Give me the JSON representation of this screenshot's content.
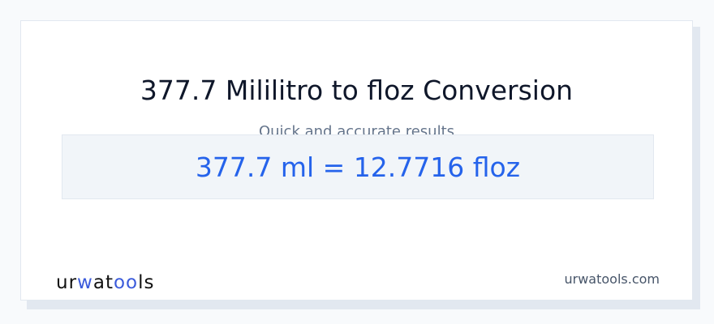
{
  "title": "377.7 Mililitro to floz Conversion",
  "subtitle": "Quick and accurate results",
  "result": "377.7 ml = 12.7716 floz",
  "logo": {
    "p1": "ur",
    "p2": "w",
    "p3": "at",
    "p4": "oo",
    "p5": "ls"
  },
  "site": "urwatools.com",
  "colors": {
    "accent": "#2563eb",
    "title": "#0f172a"
  }
}
